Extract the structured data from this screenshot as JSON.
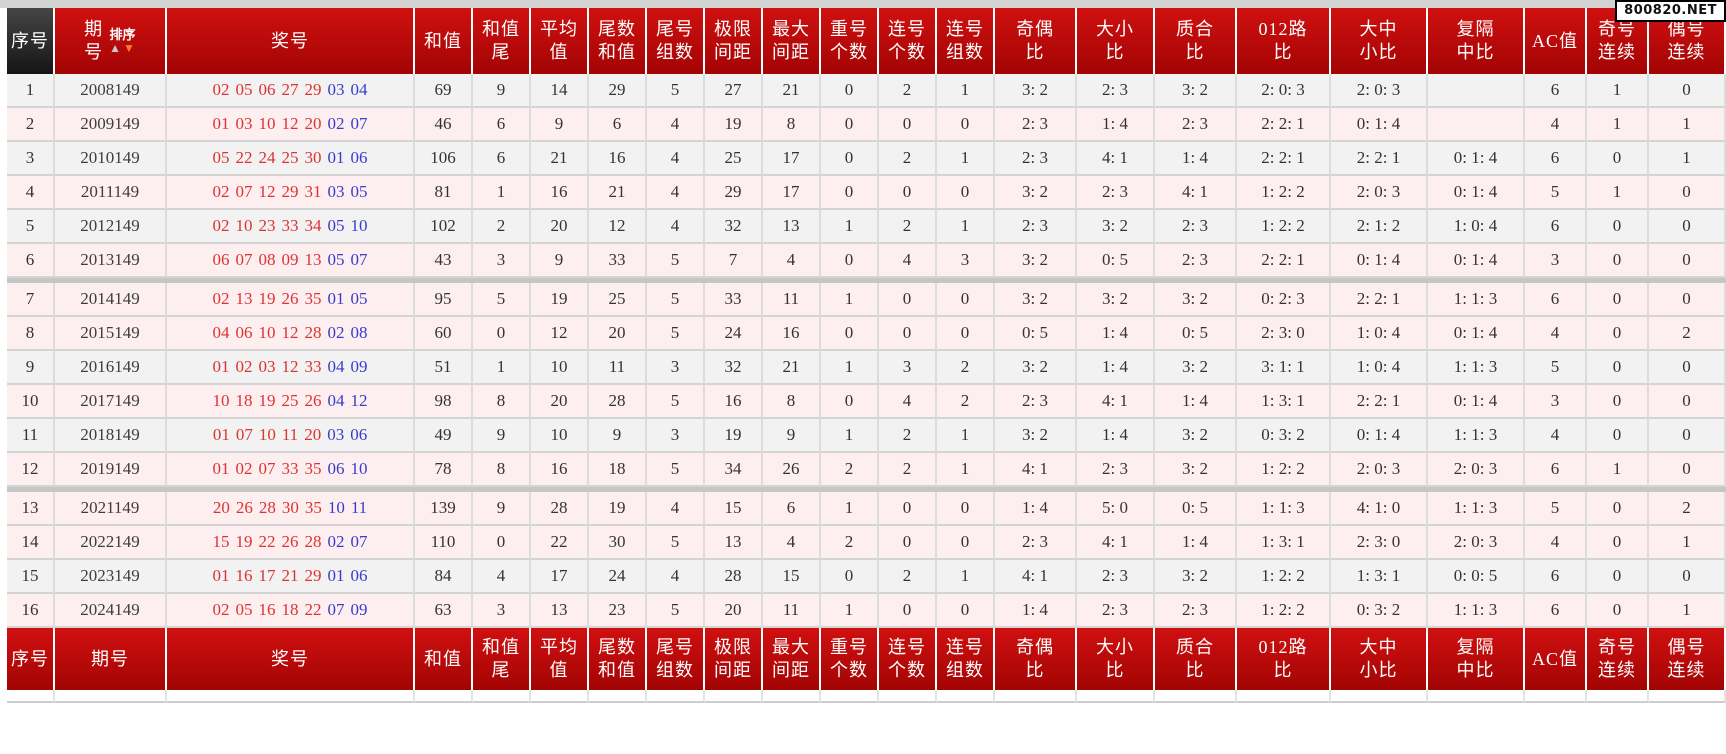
{
  "badge": "800820.NET",
  "sort": {
    "label": "排序",
    "asc_icon": "▲",
    "desc_icon": "▼"
  },
  "colors": {
    "header_red": "#b50606",
    "header_dark": "#2a2a2a",
    "row_gray": "#f1f2f1",
    "row_pink": "#fdefef",
    "front_number_red": "#dd3333",
    "back_number_blue": "#3a3acd"
  },
  "table": {
    "columns": [
      {
        "id": "idx",
        "lines": [
          "序号"
        ]
      },
      {
        "id": "period",
        "lines": [
          "期",
          "号"
        ],
        "footer_lines": [
          "期号"
        ],
        "sortable": true
      },
      {
        "id": "nums",
        "lines": [
          "奖号"
        ]
      },
      {
        "id": "sum",
        "lines": [
          "和值"
        ]
      },
      {
        "id": "sumTail",
        "lines": [
          "和值",
          "尾"
        ]
      },
      {
        "id": "avg",
        "lines": [
          "平均",
          "值"
        ]
      },
      {
        "id": "tailSum",
        "lines": [
          "尾数",
          "和值"
        ]
      },
      {
        "id": "tailGroups",
        "lines": [
          "尾号",
          "组数"
        ]
      },
      {
        "id": "limitGap",
        "lines": [
          "极限",
          "间距"
        ]
      },
      {
        "id": "maxGap",
        "lines": [
          "最大",
          "间距"
        ]
      },
      {
        "id": "repeatCnt",
        "lines": [
          "重号",
          "个数"
        ]
      },
      {
        "id": "consecCnt",
        "lines": [
          "连号",
          "个数"
        ]
      },
      {
        "id": "consecGroups",
        "lines": [
          "连号",
          "组数"
        ]
      },
      {
        "id": "oddEven",
        "lines": [
          "奇偶",
          "比"
        ]
      },
      {
        "id": "bigSmall",
        "lines": [
          "大小",
          "比"
        ]
      },
      {
        "id": "primeComp",
        "lines": [
          "质合",
          "比"
        ]
      },
      {
        "id": "road012",
        "lines": [
          "012路",
          "比"
        ]
      },
      {
        "id": "bigMidSmall",
        "lines": [
          "大中",
          "小比"
        ]
      },
      {
        "id": "fuGeZhong",
        "lines": [
          "复隔",
          "中比"
        ]
      },
      {
        "id": "ac",
        "lines": [
          "AC值"
        ]
      },
      {
        "id": "oddStreak",
        "lines": [
          "奇号",
          "连续"
        ]
      },
      {
        "id": "evenStreak",
        "lines": [
          "偶号",
          "连续"
        ]
      }
    ],
    "rows": [
      {
        "idx": "1",
        "period": "2008149",
        "front": [
          "02",
          "05",
          "06",
          "27",
          "29"
        ],
        "back": [
          "03",
          "04"
        ],
        "sum": "69",
        "sumTail": "9",
        "avg": "14",
        "tailSum": "29",
        "tailGroups": "5",
        "limitGap": "27",
        "maxGap": "21",
        "repeatCnt": "0",
        "consecCnt": "2",
        "consecGroups": "1",
        "oddEven": "3: 2",
        "bigSmall": "2: 3",
        "primeComp": "3: 2",
        "road012": "2: 0: 3",
        "bigMidSmall": "2: 0: 3",
        "fuGeZhong": "",
        "ac": "6",
        "oddStreak": "1",
        "evenStreak": "0",
        "tone": "gray",
        "group_end": false
      },
      {
        "idx": "2",
        "period": "2009149",
        "front": [
          "01",
          "03",
          "10",
          "12",
          "20"
        ],
        "back": [
          "02",
          "07"
        ],
        "sum": "46",
        "sumTail": "6",
        "avg": "9",
        "tailSum": "6",
        "tailGroups": "4",
        "limitGap": "19",
        "maxGap": "8",
        "repeatCnt": "0",
        "consecCnt": "0",
        "consecGroups": "0",
        "oddEven": "2: 3",
        "bigSmall": "1: 4",
        "primeComp": "2: 3",
        "road012": "2: 2: 1",
        "bigMidSmall": "0: 1: 4",
        "fuGeZhong": "",
        "ac": "4",
        "oddStreak": "1",
        "evenStreak": "1",
        "tone": "pink",
        "group_end": false
      },
      {
        "idx": "3",
        "period": "2010149",
        "front": [
          "05",
          "22",
          "24",
          "25",
          "30"
        ],
        "back": [
          "01",
          "06"
        ],
        "sum": "106",
        "sumTail": "6",
        "avg": "21",
        "tailSum": "16",
        "tailGroups": "4",
        "limitGap": "25",
        "maxGap": "17",
        "repeatCnt": "0",
        "consecCnt": "2",
        "consecGroups": "1",
        "oddEven": "2: 3",
        "bigSmall": "4: 1",
        "primeComp": "1: 4",
        "road012": "2: 2: 1",
        "bigMidSmall": "2: 2: 1",
        "fuGeZhong": "0: 1: 4",
        "ac": "6",
        "oddStreak": "0",
        "evenStreak": "1",
        "tone": "gray",
        "group_end": false
      },
      {
        "idx": "4",
        "period": "2011149",
        "front": [
          "02",
          "07",
          "12",
          "29",
          "31"
        ],
        "back": [
          "03",
          "05"
        ],
        "sum": "81",
        "sumTail": "1",
        "avg": "16",
        "tailSum": "21",
        "tailGroups": "4",
        "limitGap": "29",
        "maxGap": "17",
        "repeatCnt": "0",
        "consecCnt": "0",
        "consecGroups": "0",
        "oddEven": "3: 2",
        "bigSmall": "2: 3",
        "primeComp": "4: 1",
        "road012": "1: 2: 2",
        "bigMidSmall": "2: 0: 3",
        "fuGeZhong": "0: 1: 4",
        "ac": "5",
        "oddStreak": "1",
        "evenStreak": "0",
        "tone": "pink",
        "group_end": false
      },
      {
        "idx": "5",
        "period": "2012149",
        "front": [
          "02",
          "10",
          "23",
          "33",
          "34"
        ],
        "back": [
          "05",
          "10"
        ],
        "sum": "102",
        "sumTail": "2",
        "avg": "20",
        "tailSum": "12",
        "tailGroups": "4",
        "limitGap": "32",
        "maxGap": "13",
        "repeatCnt": "1",
        "consecCnt": "2",
        "consecGroups": "1",
        "oddEven": "2: 3",
        "bigSmall": "3: 2",
        "primeComp": "2: 3",
        "road012": "1: 2: 2",
        "bigMidSmall": "2: 1: 2",
        "fuGeZhong": "1: 0: 4",
        "ac": "6",
        "oddStreak": "0",
        "evenStreak": "0",
        "tone": "gray",
        "group_end": false
      },
      {
        "idx": "6",
        "period": "2013149",
        "front": [
          "06",
          "07",
          "08",
          "09",
          "13"
        ],
        "back": [
          "05",
          "07"
        ],
        "sum": "43",
        "sumTail": "3",
        "avg": "9",
        "tailSum": "33",
        "tailGroups": "5",
        "limitGap": "7",
        "maxGap": "4",
        "repeatCnt": "0",
        "consecCnt": "4",
        "consecGroups": "3",
        "oddEven": "3: 2",
        "bigSmall": "0: 5",
        "primeComp": "2: 3",
        "road012": "2: 2: 1",
        "bigMidSmall": "0: 1: 4",
        "fuGeZhong": "0: 1: 4",
        "ac": "3",
        "oddStreak": "0",
        "evenStreak": "0",
        "tone": "pink",
        "group_end": true
      },
      {
        "idx": "7",
        "period": "2014149",
        "front": [
          "02",
          "13",
          "19",
          "26",
          "35"
        ],
        "back": [
          "01",
          "05"
        ],
        "sum": "95",
        "sumTail": "5",
        "avg": "19",
        "tailSum": "25",
        "tailGroups": "5",
        "limitGap": "33",
        "maxGap": "11",
        "repeatCnt": "1",
        "consecCnt": "0",
        "consecGroups": "0",
        "oddEven": "3: 2",
        "bigSmall": "3: 2",
        "primeComp": "3: 2",
        "road012": "0: 2: 3",
        "bigMidSmall": "2: 2: 1",
        "fuGeZhong": "1: 1: 3",
        "ac": "6",
        "oddStreak": "0",
        "evenStreak": "0",
        "tone": "pink",
        "group_end": false
      },
      {
        "idx": "8",
        "period": "2015149",
        "front": [
          "04",
          "06",
          "10",
          "12",
          "28"
        ],
        "back": [
          "02",
          "08"
        ],
        "sum": "60",
        "sumTail": "0",
        "avg": "12",
        "tailSum": "20",
        "tailGroups": "5",
        "limitGap": "24",
        "maxGap": "16",
        "repeatCnt": "0",
        "consecCnt": "0",
        "consecGroups": "0",
        "oddEven": "0: 5",
        "bigSmall": "1: 4",
        "primeComp": "0: 5",
        "road012": "2: 3: 0",
        "bigMidSmall": "1: 0: 4",
        "fuGeZhong": "0: 1: 4",
        "ac": "4",
        "oddStreak": "0",
        "evenStreak": "2",
        "tone": "pink",
        "group_end": false
      },
      {
        "idx": "9",
        "period": "2016149",
        "front": [
          "01",
          "02",
          "03",
          "12",
          "33"
        ],
        "back": [
          "04",
          "09"
        ],
        "sum": "51",
        "sumTail": "1",
        "avg": "10",
        "tailSum": "11",
        "tailGroups": "3",
        "limitGap": "32",
        "maxGap": "21",
        "repeatCnt": "1",
        "consecCnt": "3",
        "consecGroups": "2",
        "oddEven": "3: 2",
        "bigSmall": "1: 4",
        "primeComp": "3: 2",
        "road012": "3: 1: 1",
        "bigMidSmall": "1: 0: 4",
        "fuGeZhong": "1: 1: 3",
        "ac": "5",
        "oddStreak": "0",
        "evenStreak": "0",
        "tone": "gray",
        "group_end": false
      },
      {
        "idx": "10",
        "period": "2017149",
        "front": [
          "10",
          "18",
          "19",
          "25",
          "26"
        ],
        "back": [
          "04",
          "12"
        ],
        "sum": "98",
        "sumTail": "8",
        "avg": "20",
        "tailSum": "28",
        "tailGroups": "5",
        "limitGap": "16",
        "maxGap": "8",
        "repeatCnt": "0",
        "consecCnt": "4",
        "consecGroups": "2",
        "oddEven": "2: 3",
        "bigSmall": "4: 1",
        "primeComp": "1: 4",
        "road012": "1: 3: 1",
        "bigMidSmall": "2: 2: 1",
        "fuGeZhong": "0: 1: 4",
        "ac": "3",
        "oddStreak": "0",
        "evenStreak": "0",
        "tone": "pink",
        "group_end": false
      },
      {
        "idx": "11",
        "period": "2018149",
        "front": [
          "01",
          "07",
          "10",
          "11",
          "20"
        ],
        "back": [
          "03",
          "06"
        ],
        "sum": "49",
        "sumTail": "9",
        "avg": "10",
        "tailSum": "9",
        "tailGroups": "3",
        "limitGap": "19",
        "maxGap": "9",
        "repeatCnt": "1",
        "consecCnt": "2",
        "consecGroups": "1",
        "oddEven": "3: 2",
        "bigSmall": "1: 4",
        "primeComp": "3: 2",
        "road012": "0: 3: 2",
        "bigMidSmall": "0: 1: 4",
        "fuGeZhong": "1: 1: 3",
        "ac": "4",
        "oddStreak": "0",
        "evenStreak": "0",
        "tone": "gray",
        "group_end": false
      },
      {
        "idx": "12",
        "period": "2019149",
        "front": [
          "01",
          "02",
          "07",
          "33",
          "35"
        ],
        "back": [
          "06",
          "10"
        ],
        "sum": "78",
        "sumTail": "8",
        "avg": "16",
        "tailSum": "18",
        "tailGroups": "5",
        "limitGap": "34",
        "maxGap": "26",
        "repeatCnt": "2",
        "consecCnt": "2",
        "consecGroups": "1",
        "oddEven": "4: 1",
        "bigSmall": "2: 3",
        "primeComp": "3: 2",
        "road012": "1: 2: 2",
        "bigMidSmall": "2: 0: 3",
        "fuGeZhong": "2: 0: 3",
        "ac": "6",
        "oddStreak": "1",
        "evenStreak": "0",
        "tone": "pink",
        "group_end": true
      },
      {
        "idx": "13",
        "period": "2021149",
        "front": [
          "20",
          "26",
          "28",
          "30",
          "35"
        ],
        "back": [
          "10",
          "11"
        ],
        "sum": "139",
        "sumTail": "9",
        "avg": "28",
        "tailSum": "19",
        "tailGroups": "4",
        "limitGap": "15",
        "maxGap": "6",
        "repeatCnt": "1",
        "consecCnt": "0",
        "consecGroups": "0",
        "oddEven": "1: 4",
        "bigSmall": "5: 0",
        "primeComp": "0: 5",
        "road012": "1: 1: 3",
        "bigMidSmall": "4: 1: 0",
        "fuGeZhong": "1: 1: 3",
        "ac": "5",
        "oddStreak": "0",
        "evenStreak": "2",
        "tone": "pink",
        "group_end": false
      },
      {
        "idx": "14",
        "period": "2022149",
        "front": [
          "15",
          "19",
          "22",
          "26",
          "28"
        ],
        "back": [
          "02",
          "07"
        ],
        "sum": "110",
        "sumTail": "0",
        "avg": "22",
        "tailSum": "30",
        "tailGroups": "5",
        "limitGap": "13",
        "maxGap": "4",
        "repeatCnt": "2",
        "consecCnt": "0",
        "consecGroups": "0",
        "oddEven": "2: 3",
        "bigSmall": "4: 1",
        "primeComp": "1: 4",
        "road012": "1: 3: 1",
        "bigMidSmall": "2: 3: 0",
        "fuGeZhong": "2: 0: 3",
        "ac": "4",
        "oddStreak": "0",
        "evenStreak": "1",
        "tone": "pink",
        "group_end": false
      },
      {
        "idx": "15",
        "period": "2023149",
        "front": [
          "01",
          "16",
          "17",
          "21",
          "29"
        ],
        "back": [
          "01",
          "06"
        ],
        "sum": "84",
        "sumTail": "4",
        "avg": "17",
        "tailSum": "24",
        "tailGroups": "4",
        "limitGap": "28",
        "maxGap": "15",
        "repeatCnt": "0",
        "consecCnt": "2",
        "consecGroups": "1",
        "oddEven": "4: 1",
        "bigSmall": "2: 3",
        "primeComp": "3: 2",
        "road012": "1: 2: 2",
        "bigMidSmall": "1: 3: 1",
        "fuGeZhong": "0: 0: 5",
        "ac": "6",
        "oddStreak": "0",
        "evenStreak": "0",
        "tone": "gray",
        "group_end": false
      },
      {
        "idx": "16",
        "period": "2024149",
        "front": [
          "02",
          "05",
          "16",
          "18",
          "22"
        ],
        "back": [
          "07",
          "09"
        ],
        "sum": "63",
        "sumTail": "3",
        "avg": "13",
        "tailSum": "23",
        "tailGroups": "5",
        "limitGap": "20",
        "maxGap": "11",
        "repeatCnt": "1",
        "consecCnt": "0",
        "consecGroups": "0",
        "oddEven": "1: 4",
        "bigSmall": "2: 3",
        "primeComp": "2: 3",
        "road012": "1: 2: 2",
        "bigMidSmall": "0: 3: 2",
        "fuGeZhong": "1: 1: 3",
        "ac": "6",
        "oddStreak": "0",
        "evenStreak": "1",
        "tone": "pink",
        "group_end": false
      }
    ]
  }
}
